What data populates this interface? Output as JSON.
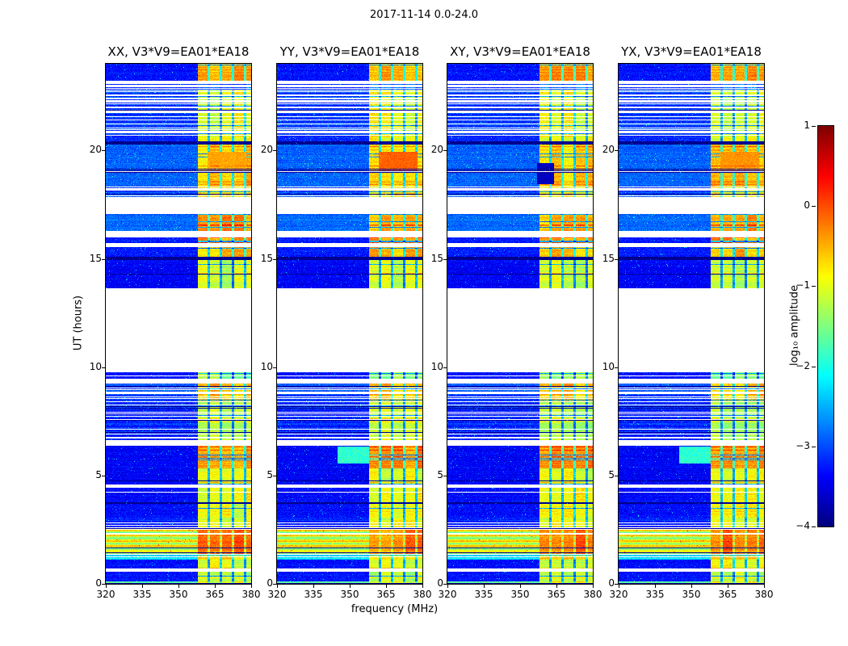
{
  "figure_title": "2017-11-14 0.0-24.0",
  "axes": {
    "xlabel": "frequency (MHz)",
    "ylabel": "UT (hours)",
    "xticks": [
      "320",
      "335",
      "350",
      "365",
      "380"
    ],
    "yticks": [
      "0",
      "5",
      "10",
      "15",
      "20"
    ],
    "xlim": [
      320,
      380
    ],
    "ylim": [
      0,
      24
    ]
  },
  "colorbar": {
    "label": "log₁₀ amplitude",
    "ticks": [
      "1",
      "0",
      "−1",
      "−2",
      "−3",
      "−4"
    ],
    "tick_values": [
      1,
      0,
      -1,
      -2,
      -3,
      -4
    ],
    "vmin": -4,
    "vmax": 1,
    "colormap": "jet"
  },
  "chart_data": {
    "type": "heatmap",
    "title": "2017-11-14 0.0-24.0",
    "xlabel": "frequency (MHz)",
    "ylabel": "UT (hours)",
    "x_range_mhz": [
      320,
      380
    ],
    "y_range_hours": [
      0,
      24
    ],
    "value_label": "log10 amplitude",
    "value_range": [
      -4,
      1
    ],
    "colormap": "jet",
    "grid": false,
    "legend": "colorbar-right",
    "panels": [
      {
        "title": "XX, V3*V9=EA01*EA18",
        "pol": "XX",
        "baseline": "V3*V9=EA01*EA18",
        "cyan_patch": false,
        "red_patch": 0.25,
        "dark_patch": false
      },
      {
        "title": "YY, V3*V9=EA01*EA18",
        "pol": "YY",
        "baseline": "V3*V9=EA01*EA18",
        "cyan_patch": true,
        "red_patch": 0.6,
        "dark_patch": false
      },
      {
        "title": "XY, V3*V9=EA01*EA18",
        "pol": "XY",
        "baseline": "V3*V9=EA01*EA18",
        "cyan_patch": false,
        "red_patch": 0,
        "dark_patch": true
      },
      {
        "title": "YX, V3*V9=EA01*EA18",
        "pol": "YX",
        "baseline": "V3*V9=EA01*EA18",
        "cyan_patch": true,
        "red_patch": 0.35,
        "dark_patch": false
      }
    ],
    "rfi_band_mhz": [
      358,
      380
    ],
    "segments": [
      {
        "t0": 0.0,
        "t1": 0.12,
        "kind": "data",
        "base": -1.7,
        "band": -1.0
      },
      {
        "t0": 0.12,
        "t1": 0.55,
        "kind": "data",
        "base": -3.3,
        "band": -1.2
      },
      {
        "t0": 0.55,
        "t1": 0.72,
        "kind": "gap"
      },
      {
        "t0": 0.72,
        "t1": 1.12,
        "kind": "data",
        "base": -3.3,
        "band": -1.0
      },
      {
        "t0": 1.12,
        "t1": 1.38,
        "kind": "stripes",
        "base": -2.3,
        "band": -0.8,
        "white_p": 0.15,
        "black_p": 0
      },
      {
        "t0": 1.38,
        "t1": 2.55,
        "kind": "bright",
        "base": -1.1,
        "band": -0.25,
        "white_p": 0.08,
        "black_p": 0.04
      },
      {
        "t0": 2.55,
        "t1": 3.05,
        "kind": "stripes",
        "base": -3.2,
        "band": -1.0,
        "white_p": 0.18,
        "black_p": 0.05
      },
      {
        "t0": 3.05,
        "t1": 3.68,
        "kind": "data",
        "base": -3.35,
        "band": -0.9
      },
      {
        "t0": 3.68,
        "t1": 3.78,
        "kind": "black"
      },
      {
        "t0": 3.78,
        "t1": 4.42,
        "kind": "data",
        "base": -3.35,
        "band": -0.9
      },
      {
        "t0": 4.42,
        "t1": 4.58,
        "kind": "gap"
      },
      {
        "t0": 4.58,
        "t1": 5.32,
        "kind": "data",
        "base": -3.4,
        "band": -1.05
      },
      {
        "t0": 5.32,
        "t1": 6.38,
        "kind": "data",
        "base": -3.4,
        "band": -0.3
      },
      {
        "t0": 6.38,
        "t1": 6.62,
        "kind": "gap"
      },
      {
        "t0": 6.62,
        "t1": 8.42,
        "kind": "stripes",
        "base": -3.2,
        "band": -1.15,
        "white_p": 0.3,
        "black_p": 0.06
      },
      {
        "t0": 8.42,
        "t1": 9.28,
        "kind": "stripes",
        "base": -3.0,
        "band": -0.55,
        "white_p": 0.22,
        "black_p": 0.1
      },
      {
        "t0": 9.28,
        "t1": 9.45,
        "kind": "gap"
      },
      {
        "t0": 9.45,
        "t1": 9.75,
        "kind": "data",
        "base": -3.3,
        "band": -1.5
      },
      {
        "t0": 9.75,
        "t1": 13.65,
        "kind": "gap"
      },
      {
        "t0": 13.65,
        "t1": 14.93,
        "kind": "data",
        "base": -3.4,
        "band": -1.15
      },
      {
        "t0": 14.93,
        "t1": 15.08,
        "kind": "black"
      },
      {
        "t0": 15.08,
        "t1": 15.55,
        "kind": "data",
        "base": -3.25,
        "band": -0.6
      },
      {
        "t0": 15.55,
        "t1": 15.72,
        "kind": "gap"
      },
      {
        "t0": 15.72,
        "t1": 15.98,
        "kind": "data",
        "base": -3.25,
        "band": -0.5
      },
      {
        "t0": 15.98,
        "t1": 16.28,
        "kind": "gap"
      },
      {
        "t0": 16.28,
        "t1": 17.06,
        "kind": "data",
        "base": -2.85,
        "band": -0.45
      },
      {
        "t0": 17.06,
        "t1": 17.86,
        "kind": "gap"
      },
      {
        "t0": 17.86,
        "t1": 18.32,
        "kind": "stripes",
        "base": -3.0,
        "band": -0.8,
        "white_p": 0.25,
        "black_p": 0.05
      },
      {
        "t0": 18.32,
        "t1": 20.28,
        "kind": "data",
        "base": -2.9,
        "band": -0.65
      },
      {
        "t0": 20.28,
        "t1": 20.42,
        "kind": "black"
      },
      {
        "t0": 20.42,
        "t1": 20.62,
        "kind": "data",
        "base": -3.2,
        "band": -1.0
      },
      {
        "t0": 20.62,
        "t1": 22.76,
        "kind": "stripes",
        "base": -3.1,
        "band": -1.0,
        "white_p": 0.32,
        "black_p": 0.04
      },
      {
        "t0": 22.76,
        "t1": 23.2,
        "kind": "gap_lines"
      },
      {
        "t0": 23.2,
        "t1": 24.0,
        "kind": "data",
        "base": -3.3,
        "band": -0.45
      }
    ],
    "patches": {
      "cyan": {
        "t0": 5.55,
        "t1": 6.35,
        "f0": 345,
        "f1": 362,
        "val": -1.9
      },
      "red": {
        "t0": 19.05,
        "t1": 19.95,
        "f0": 362,
        "f1": 378
      },
      "dark": {
        "t0": 18.45,
        "t1": 19.4,
        "f0": 357,
        "f1": 364,
        "val": -3.7
      }
    },
    "notes": "Four polarization dynamic spectra; quiet background ~10^-3.4 with strong RFI band 358–380 MHz; large data gap 9.75–13.65 UT plus short white gaps; bright broadband interval 1.4–2.55 UT."
  }
}
